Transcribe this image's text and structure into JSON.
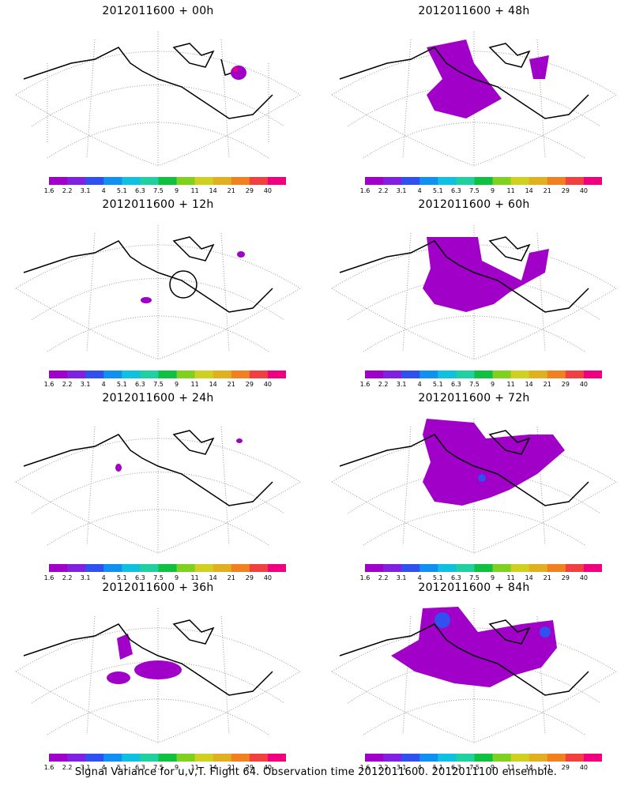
{
  "panels": [
    {
      "title": "2012011600 + 00h"
    },
    {
      "title": "2012011600 + 48h"
    },
    {
      "title": "2012011600 + 12h"
    },
    {
      "title": "2012011600 + 60h"
    },
    {
      "title": "2012011600 + 24h"
    },
    {
      "title": "2012011600 + 72h"
    },
    {
      "title": "2012011600 + 36h"
    },
    {
      "title": "2012011600 + 84h"
    }
  ],
  "colorbar": {
    "labels": [
      "1.6",
      "2.2",
      "3.1",
      "4",
      "5.1",
      "6.3",
      "7.5",
      "9",
      "11",
      "14",
      "21",
      "29",
      "40"
    ],
    "colors": [
      "#a000c8",
      "#8020e0",
      "#3050f0",
      "#1090f0",
      "#10c0e0",
      "#20d0a0",
      "#10c040",
      "#80d020",
      "#d0d020",
      "#e0b020",
      "#f08020",
      "#f04040",
      "#f00080"
    ]
  },
  "footer": "Signal Variance for u,v,T. Flight 64. Observation time 2012011600. 2012011100 ensemble."
}
